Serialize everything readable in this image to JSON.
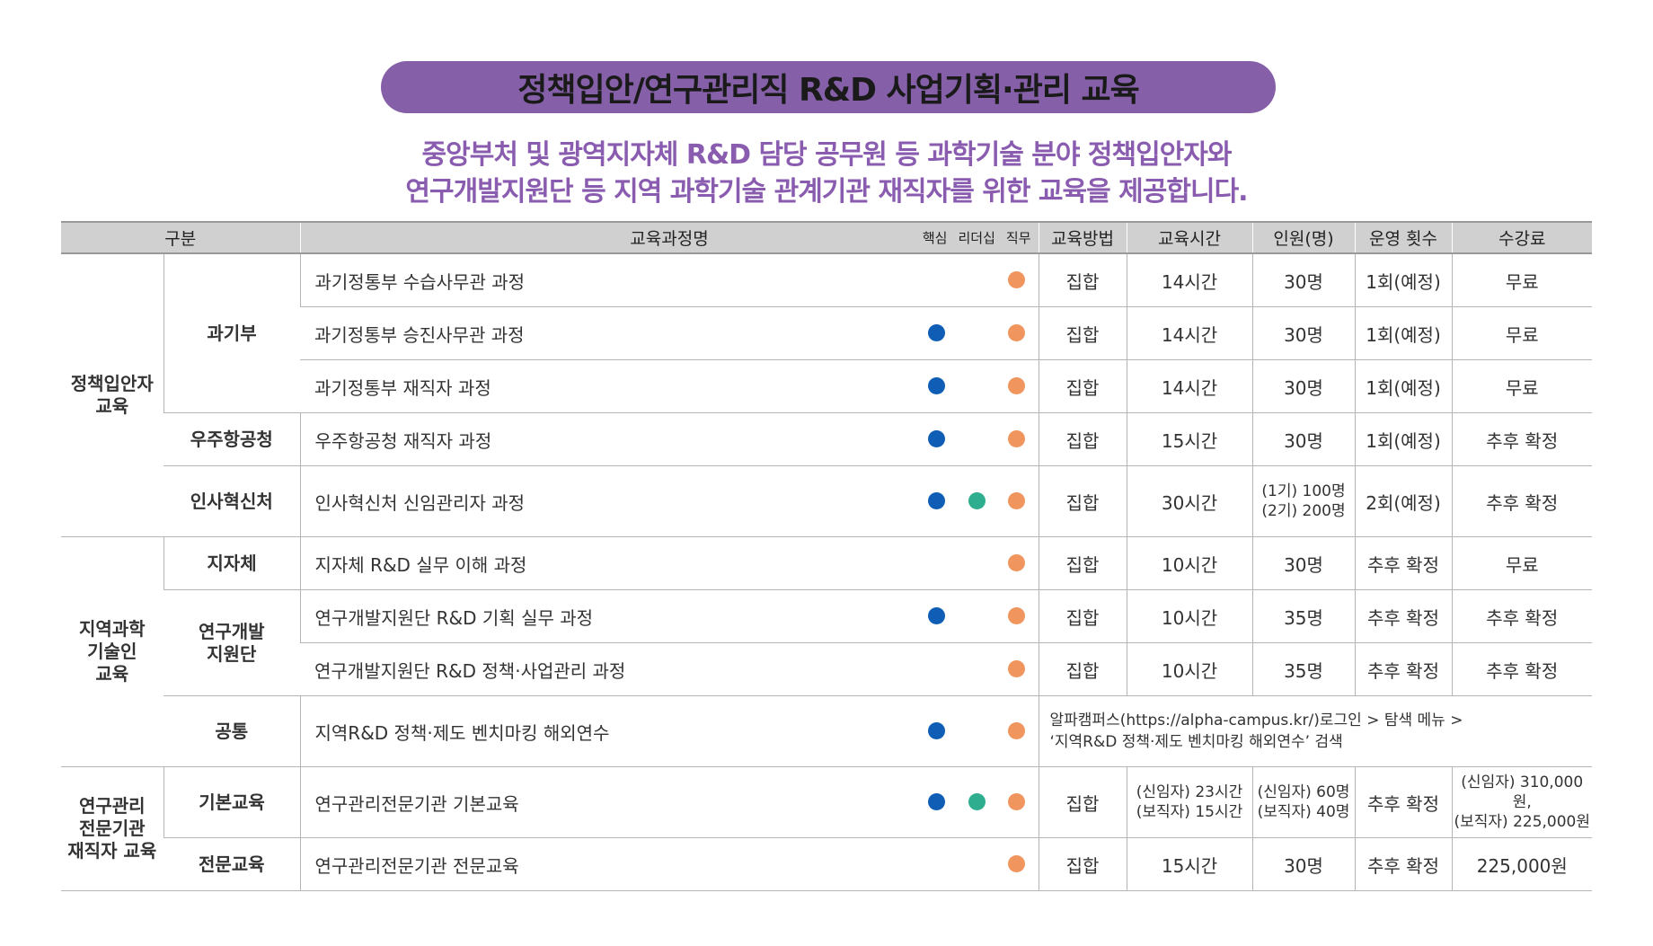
{
  "title": "정책입안/연구관리직 R&D 사업기획·관리 교육",
  "subtitle_line1": "중앙부처 및 광역지자체 R&D 담당 공무원 등 과학기술 분야 정책입안자와",
  "subtitle_line2": "연구개발지원단 등 지역 과학기술 관계기관 재직자를 위한 교육을 제공합니다.",
  "colors": {
    "title_bg": "#8560a8",
    "subtitle": "#8a5cb0",
    "core": "#0f5db5",
    "leadership": "#2fae8f",
    "job": "#f0955e"
  },
  "headers": {
    "category": "구분",
    "course": "교육과정명",
    "mark_core": "핵심",
    "mark_leadership": "리더십",
    "mark_job": "직무",
    "method": "교육방법",
    "hours": "교육시간",
    "people": "인원(명)",
    "runs": "운영 횟수",
    "fee": "수강료"
  },
  "groups": {
    "policy": "정책입안자\n교육",
    "regional": "지역과학\n기술인\n교육",
    "research": "연구관리\n전문기관\n재직자 교육"
  },
  "subgroups": {
    "msit": "과기부",
    "kasa": "우주항공청",
    "mpm": "인사혁신처",
    "local": "지자체",
    "rnd_support": "연구개발\n지원단",
    "common": "공통",
    "basic": "기본교육",
    "expert": "전문교육"
  },
  "rows": [
    {
      "course": "과기정통부 수습사무관 과정",
      "method": "집합",
      "hours": "14시간",
      "people": "30명",
      "runs": "1회(예정)",
      "fee": "무료"
    },
    {
      "course": "과기정통부 승진사무관 과정",
      "method": "집합",
      "hours": "14시간",
      "people": "30명",
      "runs": "1회(예정)",
      "fee": "무료"
    },
    {
      "course": "과기정통부 재직자 과정",
      "method": "집합",
      "hours": "14시간",
      "people": "30명",
      "runs": "1회(예정)",
      "fee": "무료"
    },
    {
      "course": "우주항공청 재직자 과정",
      "method": "집합",
      "hours": "15시간",
      "people": "30명",
      "runs": "1회(예정)",
      "fee": "추후 확정"
    },
    {
      "course": "인사혁신처 신임관리자 과정",
      "method": "집합",
      "hours": "30시간",
      "people": "(1기) 100명\n(2기) 200명",
      "runs": "2회(예정)",
      "fee": "추후 확정"
    },
    {
      "course": "지자체 R&D 실무 이해 과정",
      "method": "집합",
      "hours": "10시간",
      "people": "30명",
      "runs": "추후 확정",
      "fee": "무료"
    },
    {
      "course": "연구개발지원단 R&D 기획 실무 과정",
      "method": "집합",
      "hours": "10시간",
      "people": "35명",
      "runs": "추후 확정",
      "fee": "추후 확정"
    },
    {
      "course": "연구개발지원단 R&D 정책·사업관리 과정",
      "method": "집합",
      "hours": "10시간",
      "people": "35명",
      "runs": "추후 확정",
      "fee": "추후 확정"
    },
    {
      "course": "지역R&D 정책·제도 벤치마킹 해외연수",
      "note": "알파캠퍼스(https://alpha-campus.kr/)로그인 > 탐색 메뉴 >\n‘지역R&D 정책·제도 벤치마킹 해외연수’ 검색"
    },
    {
      "course": "연구관리전문기관 기본교육",
      "method": "집합",
      "hours": "(신임자) 23시간\n(보직자) 15시간",
      "people": "(신임자) 60명\n(보직자) 40명",
      "runs": "추후 확정",
      "fee": "(신임자) 310,000원,\n(보직자) 225,000원"
    },
    {
      "course": "연구관리전문기관 전문교육",
      "method": "집합",
      "hours": "15시간",
      "people": "30명",
      "runs": "추후 확정",
      "fee": "225,000원"
    }
  ]
}
